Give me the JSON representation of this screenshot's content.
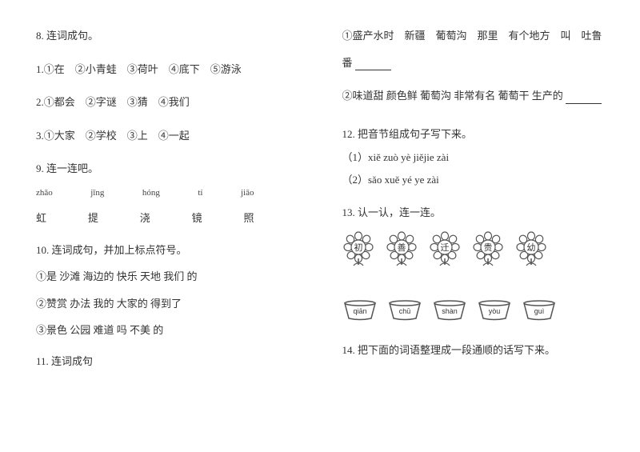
{
  "left": {
    "q8": "8. 连词成句。",
    "q8_1": "1.①在　②小青蛙　③荷叶　④底下　⑤游泳",
    "q8_2": "2.①都会　②字谜　③猜　④我们",
    "q8_3": "3.①大家　②学校　③上　④一起",
    "q9": "9. 连一连吧。",
    "pinyin": [
      "zhǎo",
      "jīng",
      "hóng",
      "tí",
      "jiāo"
    ],
    "hanzi": [
      "虹",
      "提",
      "浇",
      "镜",
      "照"
    ],
    "q10": "10. 连词成句，并加上标点符号。",
    "q10_1": "①是 沙滩 海边的 快乐 天地 我们 的",
    "q10_2": "②赞赏 办法 我的 大家的 得到了",
    "q10_3": "③景色 公园 难道 吗 不美 的",
    "q11": "11. 连词成句"
  },
  "right": {
    "q11_1a": "①盛产水时　新疆　葡萄沟　那里　有个地方　叫　吐鲁",
    "q11_1b": "番 ",
    "q11_2": "②味道甜 颜色鲜 葡萄沟 非常有名 葡萄干 生产的 ",
    "q12": "12. 把音节组成句子写下来。",
    "q12_1": "（1）xiě zuò yè  jiějie  zài",
    "q12_2": "（2）sǎo xuě yé ye  zài",
    "q13": "13. 认一认，连一连。",
    "flower_chars": [
      "初",
      "善",
      "迁",
      "贵",
      "幼"
    ],
    "bowl_labels": [
      "qiān",
      "chū",
      "shàn",
      "yòu",
      "guì"
    ],
    "q14": "14. 把下面的词语整理成一段通顺的话写下来。"
  },
  "colors": {
    "text": "#333333",
    "light": "#888888",
    "bg": "#ffffff"
  }
}
